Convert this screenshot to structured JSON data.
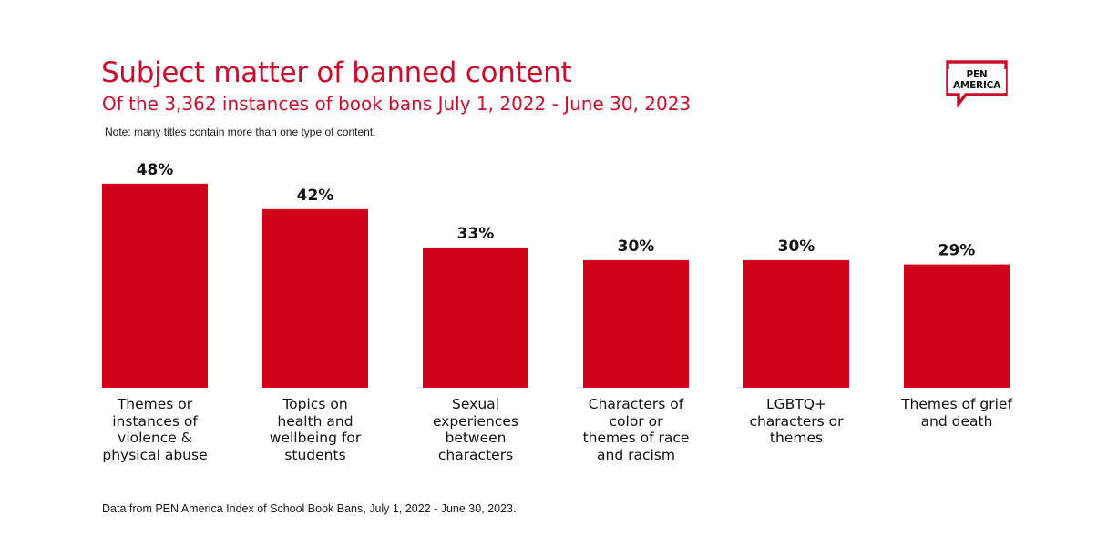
{
  "header": {
    "title": "Subject matter of banned content",
    "subtitle": "Of the 3,362 instances of book bans July 1, 2022 - June 30, 2023",
    "note": "Note: many titles contain more than one type of content."
  },
  "logo": {
    "line1": "PEN",
    "line2": "AMERICA",
    "color": "#c8102e"
  },
  "footer": {
    "source": "Data from PEN America Index of School Book Bans, July 1, 2022 - June 30, 2023."
  },
  "colors": {
    "accent": "#c8102e",
    "bar": "#d0021b",
    "text": "#111111"
  },
  "chart_data": {
    "type": "bar",
    "categories": [
      "Themes or instances of violence & physical abuse",
      "Topics on health and wellbeing for students",
      "Sexual experiences between characters",
      "Characters of color or themes of race and racism",
      "LGBTQ+ characters or themes",
      "Themes of grief and death"
    ],
    "category_lines": [
      [
        "Themes or",
        "instances of",
        "violence &",
        "physical abuse"
      ],
      [
        "Topics on",
        "health and",
        "wellbeing for",
        "students"
      ],
      [
        "Sexual",
        "experiences",
        "between",
        "characters"
      ],
      [
        "Characters of",
        "color or",
        "themes of race",
        "and racism"
      ],
      [
        "LGBTQ+",
        "characters or",
        "themes"
      ],
      [
        "Themes of grief",
        "and death"
      ]
    ],
    "values": [
      48,
      42,
      33,
      30,
      30,
      29
    ],
    "data_labels": [
      "48%",
      "42%",
      "33%",
      "30%",
      "30%",
      "29%"
    ],
    "unit": "%",
    "grid": false,
    "legend": "none"
  }
}
